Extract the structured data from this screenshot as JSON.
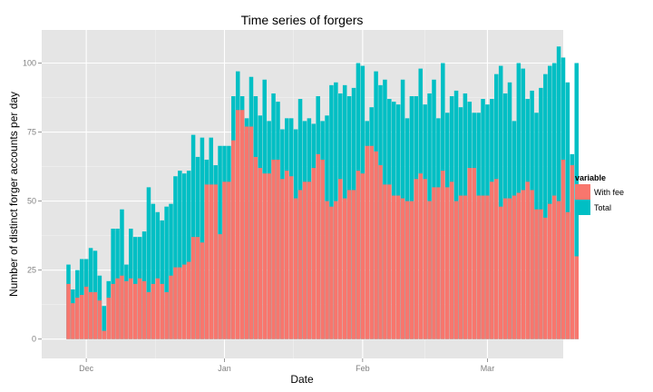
{
  "chart_data": {
    "type": "bar",
    "title": "Time series of forgers",
    "xlabel": "Date",
    "ylabel": "Number of distinct forger accounts per day",
    "ylim": [
      -7,
      112
    ],
    "yticks": [
      0,
      25,
      50,
      75,
      100
    ],
    "xlim": [
      "2013-11-21",
      "2014-03-18"
    ],
    "xticks": [
      {
        "date": "2013-12-01",
        "label": "Dec"
      },
      {
        "date": "2014-01-01",
        "label": "Jan"
      },
      {
        "date": "2014-02-01",
        "label": "Feb"
      },
      {
        "date": "2014-03-01",
        "label": "Mar"
      }
    ],
    "grid": true,
    "legend": {
      "title": "variable",
      "position": "right"
    },
    "start_date": "2013-11-27",
    "series": [
      {
        "name": "With fee",
        "color": "#F8766D",
        "values": [
          20,
          13,
          15,
          16,
          19,
          17,
          17,
          14,
          3,
          15,
          20,
          22,
          23,
          21,
          22,
          20,
          22,
          21,
          17,
          20,
          22,
          20,
          17,
          23,
          26,
          26,
          27,
          28,
          37,
          37,
          35,
          56,
          56,
          56,
          38,
          57,
          57,
          72,
          83,
          83,
          77,
          77,
          66,
          62,
          60,
          60,
          65,
          65,
          58,
          61,
          59,
          51,
          54,
          57,
          57,
          62,
          67,
          65,
          50,
          48,
          50,
          58,
          51,
          54,
          54,
          61,
          60,
          70,
          70,
          68,
          63,
          56,
          56,
          52,
          52,
          51,
          50,
          50,
          58,
          60,
          58,
          50,
          55,
          55,
          61,
          55,
          57,
          50,
          52,
          52,
          62,
          62,
          52,
          52,
          52,
          57,
          58,
          48,
          51,
          51,
          52,
          53,
          54,
          57,
          54,
          47,
          47,
          44,
          49,
          52,
          50,
          65,
          46,
          63,
          30
        ]
      },
      {
        "name": "Total",
        "color": "#00BFC4",
        "values": [
          27,
          18,
          25,
          29,
          29,
          33,
          32,
          23,
          12,
          21,
          40,
          40,
          47,
          27,
          40,
          37,
          37,
          39,
          55,
          49,
          46,
          43,
          48,
          49,
          59,
          61,
          60,
          61,
          74,
          66,
          73,
          65,
          73,
          63,
          70,
          70,
          70,
          88,
          97,
          88,
          80,
          95,
          88,
          81,
          94,
          79,
          89,
          86,
          76,
          80,
          80,
          76,
          87,
          79,
          80,
          78,
          88,
          79,
          81,
          92,
          93,
          89,
          92,
          88,
          91,
          100,
          99,
          79,
          84,
          97,
          92,
          94,
          87,
          86,
          85,
          94,
          80,
          88,
          88,
          98,
          85,
          89,
          94,
          80,
          100,
          82,
          88,
          90,
          84,
          89,
          86,
          82,
          82,
          87,
          85,
          87,
          96,
          99,
          89,
          93,
          79,
          100,
          98,
          87,
          90,
          82,
          91,
          96,
          99,
          100,
          106,
          102,
          93,
          67,
          100
        ]
      }
    ]
  }
}
